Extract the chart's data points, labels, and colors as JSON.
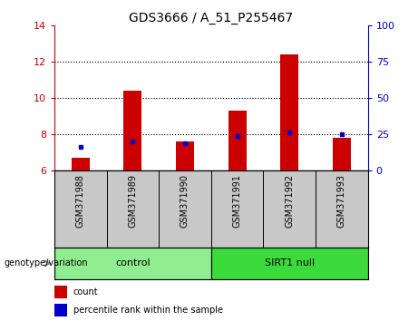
{
  "title": "GDS3666 / A_51_P255467",
  "samples": [
    "GSM371988",
    "GSM371989",
    "GSM371990",
    "GSM371991",
    "GSM371992",
    "GSM371993"
  ],
  "red_values": [
    6.7,
    10.4,
    7.6,
    9.3,
    12.4,
    7.8
  ],
  "blue_values": [
    7.3,
    7.6,
    7.5,
    7.9,
    8.1,
    8.0
  ],
  "y_min": 6,
  "y_max": 14,
  "y_ticks_left": [
    6,
    8,
    10,
    12,
    14
  ],
  "y_ticks_right": [
    0,
    25,
    50,
    75,
    100
  ],
  "groups": [
    {
      "label": "control",
      "color": "#90EE90",
      "start": 0,
      "end": 3
    },
    {
      "label": "SIRT1 null",
      "color": "#3ADB3A",
      "start": 3,
      "end": 6
    }
  ],
  "genotype_label": "genotype/variation",
  "legend_red": "count",
  "legend_blue": "percentile rank within the sample",
  "red_color": "#CC0000",
  "blue_color": "#0000CC",
  "bar_width": 0.35,
  "label_area_color": "#C8C8C8",
  "left_axis_color": "#CC0000",
  "right_axis_color": "#0000CC",
  "title_fontsize": 10
}
